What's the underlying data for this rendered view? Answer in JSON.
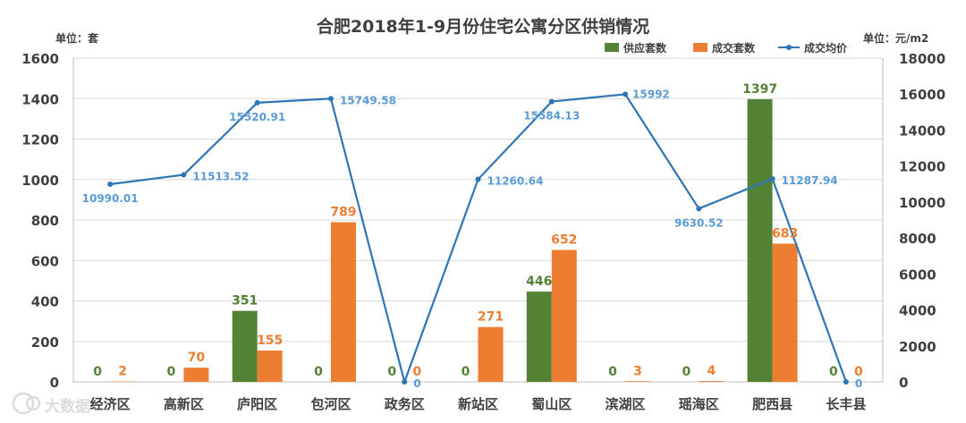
{
  "chart_data": {
    "type": "bar",
    "title": "合肥2018年1-9月份住宅公寓分区供销情况",
    "left_unit": "单位：套",
    "right_unit": "单位：元/m2",
    "ylim_left": [
      0,
      1600
    ],
    "ylim_right": [
      0,
      18000
    ],
    "left_ticks": [
      0,
      200,
      400,
      600,
      800,
      1000,
      1200,
      1400,
      1600
    ],
    "right_ticks": [
      0,
      2000,
      4000,
      6000,
      8000,
      10000,
      12000,
      14000,
      16000,
      18000
    ],
    "categories": [
      "经济区",
      "高新区",
      "庐阳区",
      "包河区",
      "政务区",
      "新站区",
      "蜀山区",
      "滨湖区",
      "瑶海区",
      "肥西县",
      "长丰县"
    ],
    "series": [
      {
        "name": "供应套数",
        "type": "bar",
        "axis": "left",
        "color": "#548235",
        "values": [
          0,
          0,
          351,
          0,
          0,
          0,
          446,
          0,
          0,
          1397,
          0
        ]
      },
      {
        "name": "成交套数",
        "type": "bar",
        "axis": "left",
        "color": "#ed7d31",
        "values": [
          2,
          70,
          155,
          789,
          0,
          271,
          652,
          3,
          4,
          683,
          0
        ]
      },
      {
        "name": "成交均价",
        "type": "line",
        "axis": "right",
        "color": "#2e75b6",
        "values": [
          10990.01,
          11513.52,
          15520.91,
          15749.58,
          0,
          11260.64,
          15584.13,
          15992,
          9630.52,
          11287.94,
          0
        ],
        "labels": [
          "10990.01",
          "11513.52",
          "15520.91",
          "15749.58",
          "0",
          "11260.64",
          "15584.13",
          "15992",
          "9630.52",
          "11287.94",
          "0"
        ]
      }
    ],
    "legend": "top-right",
    "watermark": "大数据"
  }
}
